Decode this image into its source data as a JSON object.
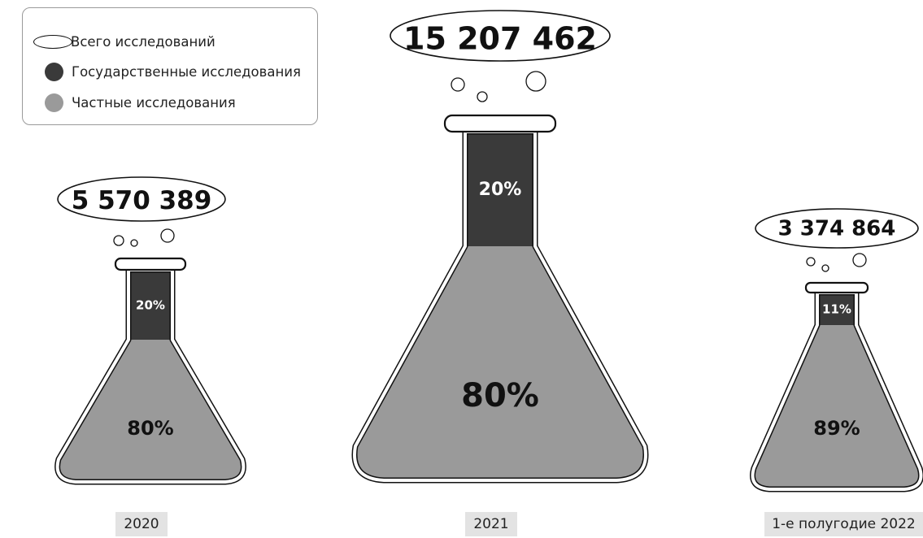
{
  "legend": {
    "total_label": "Всего исследований",
    "public_label": "Государственные исследования",
    "private_label": "Частные исследования"
  },
  "colors": {
    "public": "#3a3a3a",
    "private": "#9a9a9a",
    "outline": "#111111",
    "label_bg": "#e3e3e3"
  },
  "chart_data": {
    "type": "bar",
    "categories": [
      "2020",
      "2021",
      "1-е полугодие 2022"
    ],
    "totals": [
      5570389,
      15207462,
      3374864
    ],
    "total_labels": [
      "5 570 389",
      "15 207 462",
      "3 374 864"
    ],
    "series": [
      {
        "name": "Государственные исследования",
        "values": [
          20,
          20,
          11
        ],
        "labels": [
          "20%",
          "20%",
          "11%"
        ]
      },
      {
        "name": "Частные исследования",
        "values": [
          80,
          80,
          89
        ],
        "labels": [
          "80%",
          "80%",
          "89%"
        ]
      }
    ]
  }
}
